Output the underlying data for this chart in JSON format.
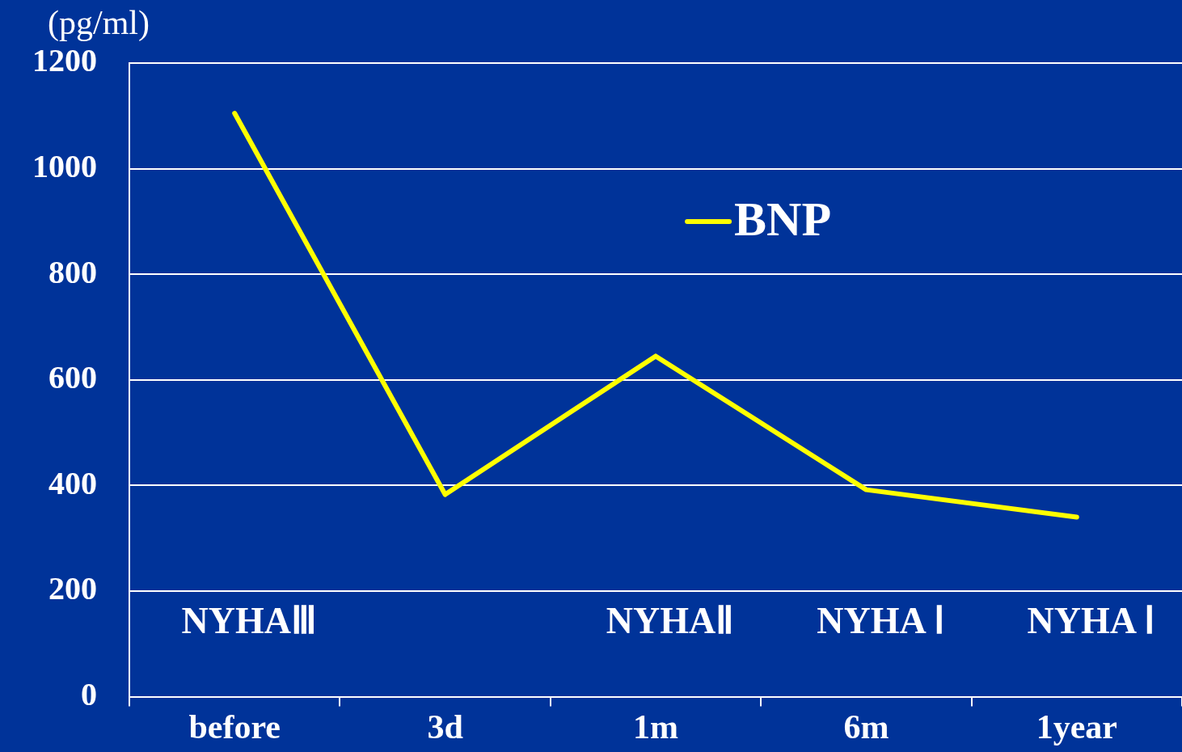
{
  "chart_data": {
    "type": "line",
    "ylabel": "(pg/ml)",
    "categories": [
      "before",
      "3d",
      "1m",
      "6m",
      "1year"
    ],
    "series": [
      {
        "name": "BNP",
        "color": "#ffff00",
        "values": [
          1105,
          383,
          645,
          392,
          340
        ]
      }
    ],
    "ylim": [
      0,
      1200
    ],
    "yticks": [
      0,
      200,
      400,
      600,
      800,
      1000,
      1200
    ],
    "grid": "y",
    "legend": "top",
    "marker": "none",
    "line_style": "solid",
    "annotations": [
      "NYHAⅢ",
      "NYHAⅡ",
      "NYHA Ⅰ",
      "NYHA Ⅰ"
    ]
  }
}
